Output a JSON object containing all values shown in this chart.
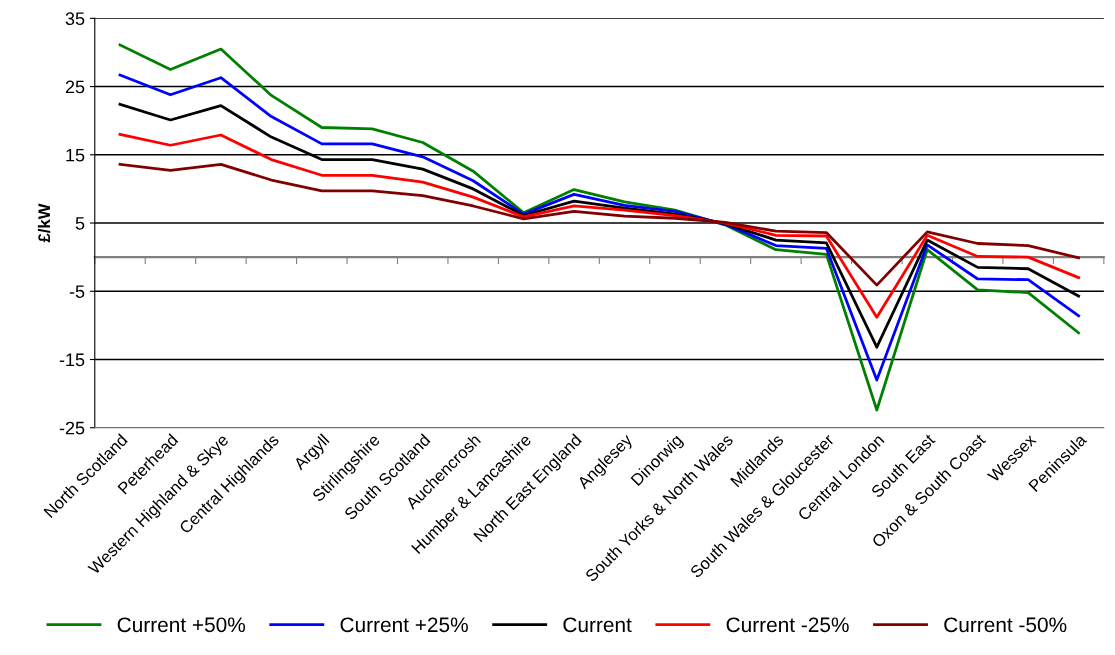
{
  "chart_data": {
    "type": "line",
    "ylabel": "£/kW",
    "categories": [
      "North Scotland",
      "Peterhead",
      "Western Highland & Skye",
      "Central Highlands",
      "Argyll",
      "Stirlingshire",
      "South Scotland",
      "Auchencrosh",
      "Humber & Lancashire",
      "North East England",
      "Anglesey",
      "Dinorwig",
      "South Yorks & North Wales",
      "Midlands",
      "South Wales & Gloucester",
      "Central London",
      "South East",
      "Oxon & South Coast",
      "Wessex",
      "Peninsula"
    ],
    "series": [
      {
        "name": "Current +50%",
        "color": "#008000",
        "values": [
          31.1,
          27.5,
          30.5,
          23.7,
          19.0,
          18.8,
          16.8,
          12.6,
          6.5,
          9.9,
          8.1,
          6.9,
          4.7,
          1.1,
          0.4,
          -22.4,
          1.1,
          -4.8,
          -5.2,
          -11.1
        ]
      },
      {
        "name": "Current +25%",
        "color": "#0000ff",
        "values": [
          26.7,
          23.8,
          26.3,
          20.6,
          16.6,
          16.6,
          14.7,
          11.2,
          6.3,
          9.2,
          7.6,
          6.7,
          4.8,
          1.7,
          1.3,
          -18.0,
          1.8,
          -3.2,
          -3.3,
          -8.6
        ]
      },
      {
        "name": "Current",
        "color": "#000000",
        "values": [
          22.4,
          20.1,
          22.2,
          17.6,
          14.3,
          14.3,
          12.9,
          10.0,
          6.1,
          8.2,
          7.2,
          6.3,
          4.9,
          2.5,
          2.1,
          -13.2,
          2.5,
          -1.5,
          -1.7,
          -5.7
        ]
      },
      {
        "name": "Current -25%",
        "color": "#ff0000",
        "values": [
          18.0,
          16.4,
          17.9,
          14.3,
          12.0,
          12.0,
          11.0,
          8.8,
          5.9,
          7.5,
          6.9,
          6.1,
          5.0,
          3.2,
          3.1,
          -8.8,
          3.2,
          0.1,
          0.0,
          -3.0
        ]
      },
      {
        "name": "Current -50%",
        "color": "#800000",
        "values": [
          13.6,
          12.7,
          13.6,
          11.3,
          9.7,
          9.7,
          9.0,
          7.5,
          5.6,
          6.7,
          6.0,
          5.7,
          5.1,
          3.8,
          3.6,
          -4.1,
          3.7,
          2.0,
          1.7,
          -0.1
        ]
      }
    ],
    "ylim": [
      -25,
      35
    ],
    "yticks": [
      -25,
      -15,
      -5,
      5,
      15,
      25,
      35
    ],
    "grid": "y",
    "legend": "bottom",
    "marker": "none",
    "line_style": "solid"
  }
}
